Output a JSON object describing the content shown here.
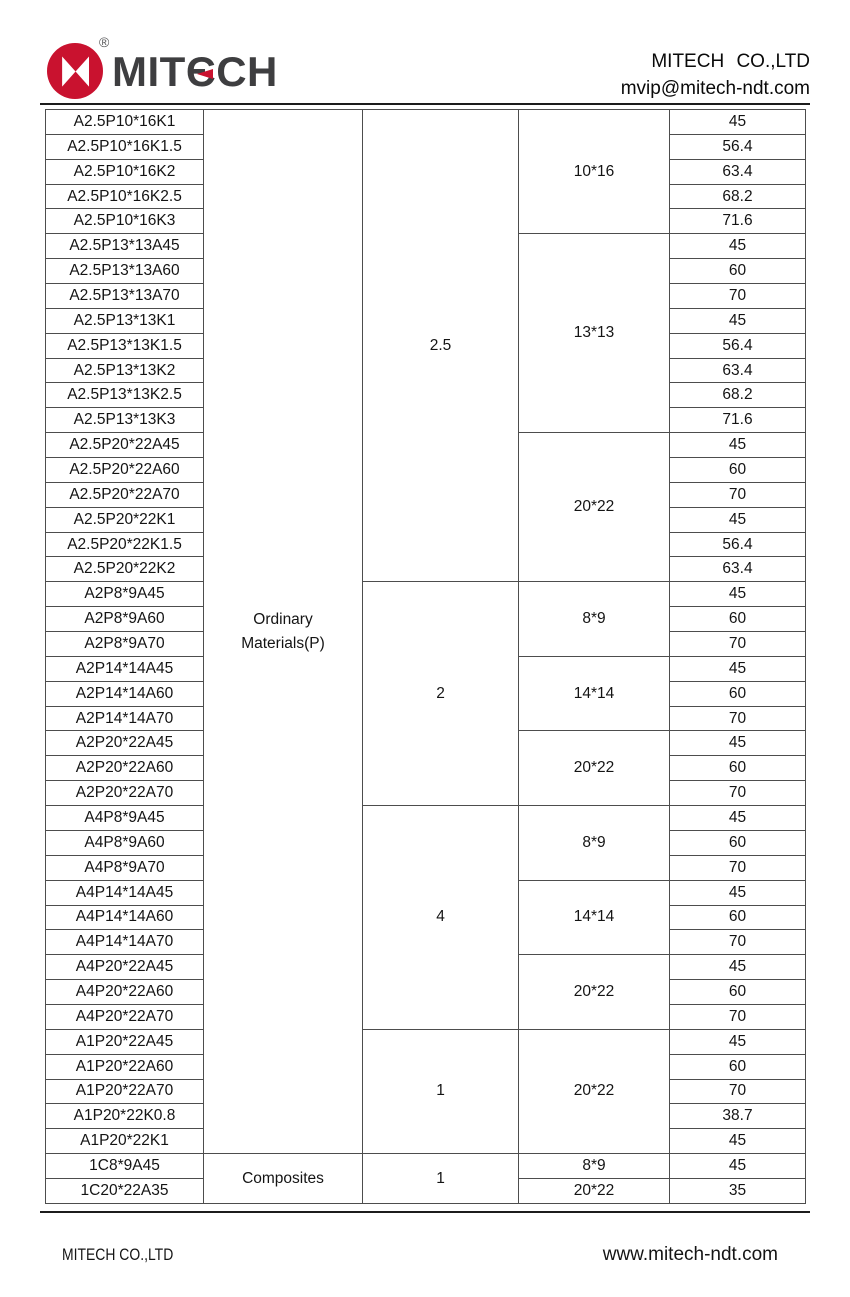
{
  "logo": {
    "name": "MITECH",
    "registered": "®",
    "parts": {
      "left": "MIT",
      "accent_e": "Є",
      "right": "CH"
    },
    "brand_red": "#C9122F",
    "wordmark_color": "#3E3E40"
  },
  "header": {
    "company": "MITECH CO.,LTD",
    "email": "mvip@mitech-ndt.com"
  },
  "footer": {
    "company": "MITECH CO.,LTD",
    "website": "www.mitech-ndt.com"
  },
  "table": {
    "material_groups": [
      {
        "label": "Ordinary\nMaterials(P)",
        "rowspan": 42
      },
      {
        "label": "Composites",
        "rowspan": 2
      }
    ],
    "frequency_groups": [
      {
        "value": "2.5",
        "rowspan": 19
      },
      {
        "value": "2",
        "rowspan": 9
      },
      {
        "value": "4",
        "rowspan": 9
      },
      {
        "value": "1",
        "rowspan": 5
      },
      {
        "value": "1",
        "rowspan": 2
      }
    ],
    "size_groups": [
      {
        "value": "10*16",
        "rowspan": 5
      },
      {
        "value": "13*13",
        "rowspan": 8
      },
      {
        "value": "20*22",
        "rowspan": 6
      },
      {
        "value": "8*9",
        "rowspan": 3
      },
      {
        "value": "14*14",
        "rowspan": 3
      },
      {
        "value": "20*22",
        "rowspan": 3
      },
      {
        "value": "8*9",
        "rowspan": 3
      },
      {
        "value": "14*14",
        "rowspan": 3
      },
      {
        "value": "20*22",
        "rowspan": 3
      },
      {
        "value": "20*22",
        "rowspan": 5
      },
      {
        "value": "8*9",
        "rowspan": 1
      },
      {
        "value": "20*22",
        "rowspan": 1
      }
    ],
    "rows": [
      {
        "model": "A2.5P10*16K1",
        "angle": "45"
      },
      {
        "model": "A2.5P10*16K1.5",
        "angle": "56.4"
      },
      {
        "model": "A2.5P10*16K2",
        "angle": "63.4"
      },
      {
        "model": "A2.5P10*16K2.5",
        "angle": "68.2"
      },
      {
        "model": "A2.5P10*16K3",
        "angle": "71.6"
      },
      {
        "model": "A2.5P13*13A45",
        "angle": "45"
      },
      {
        "model": "A2.5P13*13A60",
        "angle": "60"
      },
      {
        "model": "A2.5P13*13A70",
        "angle": "70"
      },
      {
        "model": "A2.5P13*13K1",
        "angle": "45"
      },
      {
        "model": "A2.5P13*13K1.5",
        "angle": "56.4"
      },
      {
        "model": "A2.5P13*13K2",
        "angle": "63.4"
      },
      {
        "model": "A2.5P13*13K2.5",
        "angle": "68.2"
      },
      {
        "model": "A2.5P13*13K3",
        "angle": "71.6"
      },
      {
        "model": "A2.5P20*22A45",
        "angle": "45"
      },
      {
        "model": "A2.5P20*22A60",
        "angle": "60"
      },
      {
        "model": "A2.5P20*22A70",
        "angle": "70"
      },
      {
        "model": "A2.5P20*22K1",
        "angle": "45"
      },
      {
        "model": "A2.5P20*22K1.5",
        "angle": "56.4"
      },
      {
        "model": "A2.5P20*22K2",
        "angle": "63.4"
      },
      {
        "model": "A2P8*9A45",
        "angle": "45"
      },
      {
        "model": "A2P8*9A60",
        "angle": "60"
      },
      {
        "model": "A2P8*9A70",
        "angle": "70"
      },
      {
        "model": "A2P14*14A45",
        "angle": "45"
      },
      {
        "model": "A2P14*14A60",
        "angle": "60"
      },
      {
        "model": "A2P14*14A70",
        "angle": "70"
      },
      {
        "model": "A2P20*22A45",
        "angle": "45"
      },
      {
        "model": "A2P20*22A60",
        "angle": "60"
      },
      {
        "model": "A2P20*22A70",
        "angle": "70"
      },
      {
        "model": "A4P8*9A45",
        "angle": "45"
      },
      {
        "model": "A4P8*9A60",
        "angle": "60"
      },
      {
        "model": "A4P8*9A70",
        "angle": "70"
      },
      {
        "model": "A4P14*14A45",
        "angle": "45"
      },
      {
        "model": "A4P14*14A60",
        "angle": "60"
      },
      {
        "model": "A4P14*14A70",
        "angle": "70"
      },
      {
        "model": "A4P20*22A45",
        "angle": "45"
      },
      {
        "model": "A4P20*22A60",
        "angle": "60"
      },
      {
        "model": "A4P20*22A70",
        "angle": "70"
      },
      {
        "model": "A1P20*22A45",
        "angle": "45"
      },
      {
        "model": "A1P20*22A60",
        "angle": "60"
      },
      {
        "model": "A1P20*22A70",
        "angle": "70"
      },
      {
        "model": "A1P20*22K0.8",
        "angle": "38.7"
      },
      {
        "model": "A1P20*22K1",
        "angle": "45"
      },
      {
        "model": "1C8*9A45",
        "angle": "45"
      },
      {
        "model": "1C20*22A35",
        "angle": "35"
      }
    ]
  }
}
